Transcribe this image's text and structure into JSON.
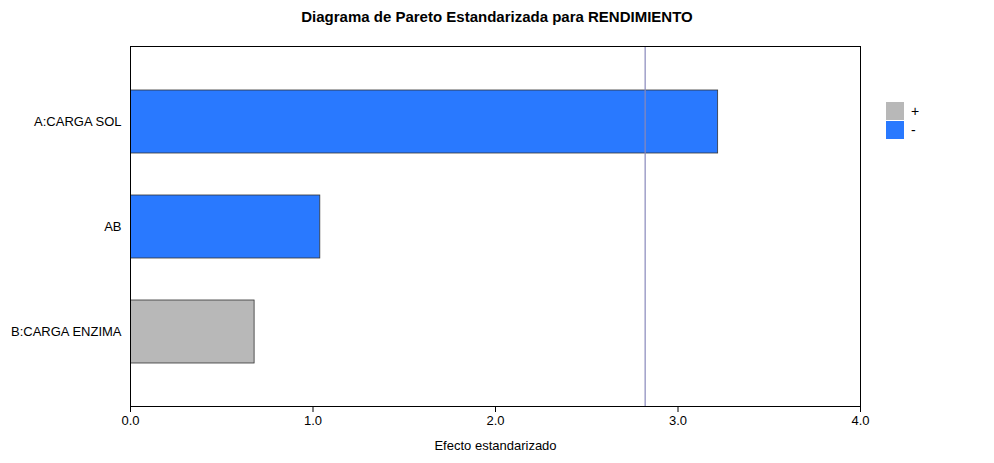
{
  "chart_data": {
    "type": "bar",
    "orientation": "horizontal",
    "title": "Diagrama de Pareto Estandarizada para RENDIMIENTO",
    "xlabel": "Efecto estandarizado",
    "categories": [
      "B:CARGA ENZIMA",
      "AB",
      "A:CARGA SOL"
    ],
    "values": [
      0.68,
      1.04,
      3.22
    ],
    "colors": [
      "#b8b8b8",
      "#2979ff",
      "#2979ff"
    ],
    "reference_lines": [
      {
        "value": 2.82,
        "color": "#8888bb"
      }
    ],
    "xlim": [
      0,
      4
    ],
    "xticks": [
      0,
      1,
      2,
      3,
      4
    ],
    "grid": false,
    "legend": "right",
    "legend_entries": [
      {
        "name": "+",
        "color": "#b8b8b8"
      },
      {
        "name": "-",
        "color": "#2979ff"
      }
    ]
  }
}
